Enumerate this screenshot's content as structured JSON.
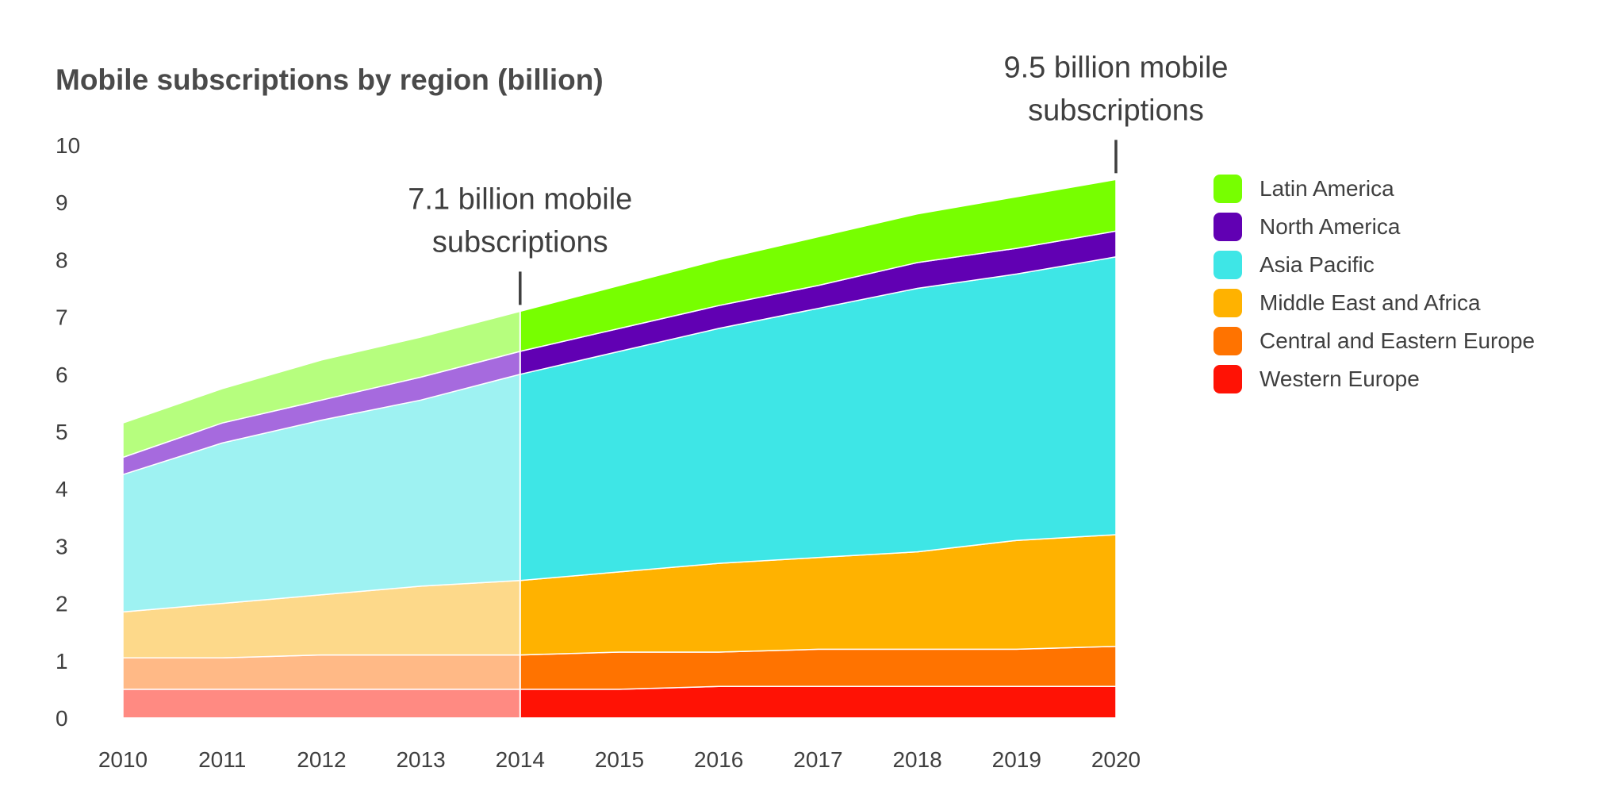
{
  "chart_data": {
    "type": "area",
    "stacked": true,
    "title": "Mobile subscriptions by region (billion)",
    "xlabel": "",
    "ylabel": "",
    "x": [
      "2010",
      "2011",
      "2012",
      "2013",
      "2014",
      "2015",
      "2016",
      "2017",
      "2018",
      "2019",
      "2020"
    ],
    "ylim": [
      0,
      10
    ],
    "yticks": [
      "0",
      "1",
      "2",
      "3",
      "4",
      "5",
      "6",
      "7",
      "8",
      "9",
      "10"
    ],
    "faded_through": "2014",
    "series": [
      {
        "name": "Western Europe",
        "color": "#ff1205",
        "faded_color": "#ff8a82",
        "values": [
          0.5,
          0.5,
          0.5,
          0.5,
          0.5,
          0.5,
          0.55,
          0.55,
          0.55,
          0.55,
          0.55
        ]
      },
      {
        "name": "Central and Eastern Europe",
        "color": "#ff7300",
        "faded_color": "#ffb986",
        "values": [
          0.55,
          0.55,
          0.6,
          0.6,
          0.6,
          0.65,
          0.6,
          0.65,
          0.65,
          0.65,
          0.7
        ]
      },
      {
        "name": "Middle East and Africa",
        "color": "#ffb200",
        "faded_color": "#fdd98a",
        "values": [
          0.8,
          0.95,
          1.05,
          1.2,
          1.3,
          1.4,
          1.55,
          1.6,
          1.7,
          1.9,
          1.95
        ]
      },
      {
        "name": "Asia Pacific",
        "color": "#3ee6e6",
        "faded_color": "#9ef2f2",
        "values": [
          2.4,
          2.8,
          3.05,
          3.25,
          3.6,
          3.85,
          4.1,
          4.35,
          4.6,
          4.65,
          4.85
        ]
      },
      {
        "name": "North America",
        "color": "#6100b3",
        "faded_color": "#a66ade",
        "values": [
          0.3,
          0.35,
          0.35,
          0.4,
          0.4,
          0.4,
          0.4,
          0.4,
          0.45,
          0.45,
          0.45
        ]
      },
      {
        "name": "Latin America",
        "color": "#77ff00",
        "faded_color": "#b6fe7e",
        "values": [
          0.6,
          0.6,
          0.7,
          0.7,
          0.7,
          0.75,
          0.8,
          0.85,
          0.85,
          0.9,
          0.9
        ]
      }
    ],
    "annotations": [
      {
        "x": "2014",
        "lines": [
          "7.1 billion mobile",
          "subscriptions"
        ]
      },
      {
        "x": "2020",
        "lines": [
          "9.5 billion mobile",
          "subscriptions"
        ]
      }
    ]
  },
  "legend": {
    "items": [
      {
        "label": "Latin America",
        "color": "#77ff00"
      },
      {
        "label": "North America",
        "color": "#6100b3"
      },
      {
        "label": "Asia Pacific",
        "color": "#3ee6e6"
      },
      {
        "label": "Middle East and Africa",
        "color": "#ffb200"
      },
      {
        "label": "Central and Eastern Europe",
        "color": "#ff7300"
      },
      {
        "label": "Western Europe",
        "color": "#ff1205"
      }
    ]
  }
}
